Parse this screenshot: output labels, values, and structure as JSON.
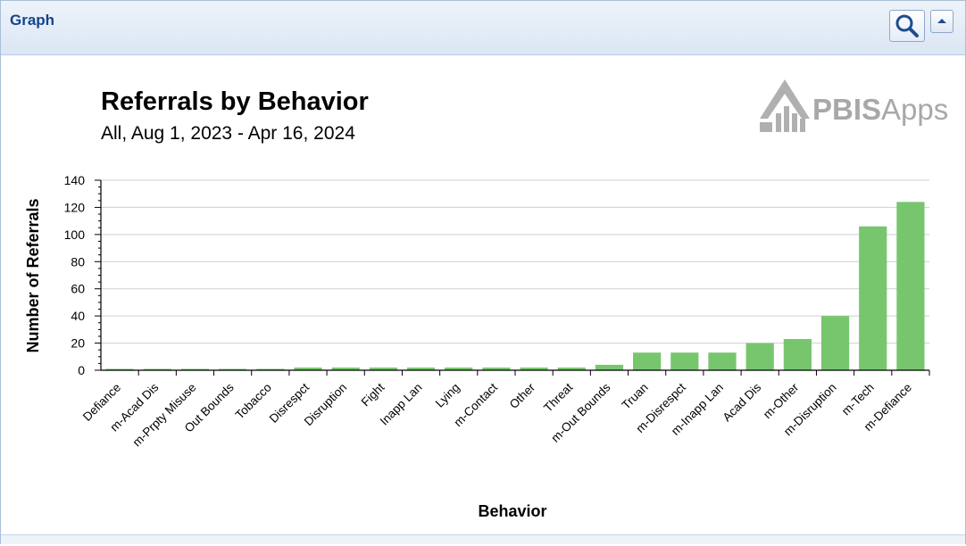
{
  "panel": {
    "title": "Graph",
    "zoom_icon": "search-icon",
    "collapse_icon": "collapse-up-icon"
  },
  "logo": {
    "bold": "PBIS",
    "light": "Apps"
  },
  "colors": {
    "bar": "#77c66e",
    "grid": "#cfcfcf",
    "axis": "#000000",
    "header_title": "#15428b"
  },
  "chart_data": {
    "type": "bar",
    "title": "Referrals by Behavior",
    "subtitle": "All, Aug 1, 2023 - Apr 16, 2024",
    "xlabel": "Behavior",
    "ylabel": "Number of Referrals",
    "ylim": [
      0,
      140
    ],
    "yticks": [
      0,
      20,
      40,
      60,
      80,
      100,
      120,
      140
    ],
    "grid": true,
    "categories": [
      "Defiance",
      "m-Acad Dis",
      "m-Prpty Misuse",
      "Out Bounds",
      "Tobacco",
      "Disrespct",
      "Disruption",
      "Fight",
      "Inapp Lan",
      "Lying",
      "m-Contact",
      "Other",
      "Threat",
      "m-Out Bounds",
      "Truan",
      "m-Disrespct",
      "m-Inapp Lan",
      "Acad Dis",
      "m-Other",
      "m-Disruption",
      "m-Tech",
      "m-Defiance"
    ],
    "values": [
      1,
      1,
      1,
      1,
      1,
      2,
      2,
      2,
      2,
      2,
      2,
      2,
      2,
      4,
      13,
      13,
      13,
      20,
      23,
      40,
      106,
      124
    ]
  }
}
